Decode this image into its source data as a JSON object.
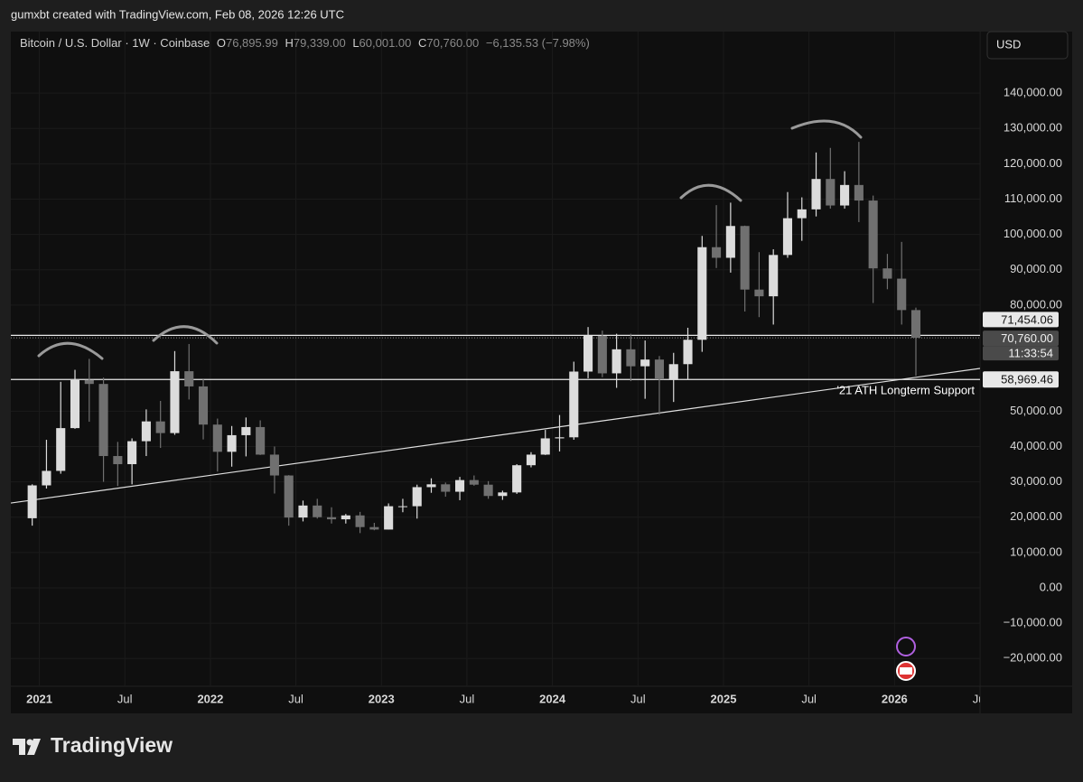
{
  "header": {
    "text": "gumxbt created with TradingView.com, Feb 08, 2026 12:26 UTC"
  },
  "legend": {
    "symbol": "Bitcoin / U.S. Dollar · 1W · Coinbase",
    "o_label": "O",
    "o_value": "76,895.99",
    "h_label": "H",
    "h_value": "79,339.00",
    "l_label": "L",
    "l_value": "60,001.00",
    "c_label": "C",
    "c_value": "70,760.00",
    "change": "−6,135.53 (−7.98%)"
  },
  "currency_button": "USD",
  "brand": "TradingView",
  "chart_data": {
    "type": "candlestick",
    "x": [
      "2020-12",
      "2021-01",
      "2021-02",
      "2021-03",
      "2021-04",
      "2021-05",
      "2021-06",
      "2021-07",
      "2021-08",
      "2021-09",
      "2021-10",
      "2021-11",
      "2021-12",
      "2022-01",
      "2022-02",
      "2022-03",
      "2022-04",
      "2022-05",
      "2022-06",
      "2022-07",
      "2022-08",
      "2022-09",
      "2022-10",
      "2022-11",
      "2022-12",
      "2023-01",
      "2023-02",
      "2023-03",
      "2023-04",
      "2023-05",
      "2023-06",
      "2023-07",
      "2023-08",
      "2023-09",
      "2023-10",
      "2023-11",
      "2023-12",
      "2024-01",
      "2024-02",
      "2024-03",
      "2024-04",
      "2024-05",
      "2024-06",
      "2024-07",
      "2024-08",
      "2024-09",
      "2024-10",
      "2024-11",
      "2024-12",
      "2025-01",
      "2025-02",
      "2025-03",
      "2025-04",
      "2025-05",
      "2025-06",
      "2025-07",
      "2025-08",
      "2025-09",
      "2025-10",
      "2025-11",
      "2025-12",
      "2026-01",
      "2026-02"
    ],
    "open": [
      19700,
      29000,
      33100,
      45200,
      58800,
      57700,
      37300,
      35000,
      41500,
      47100,
      43800,
      61300,
      57000,
      46200,
      38500,
      43200,
      45500,
      37700,
      31800,
      19900,
      23300,
      20000,
      19400,
      20500,
      17200,
      16500,
      23100,
      23100,
      28500,
      29300,
      27200,
      30500,
      29200,
      26000,
      27000,
      34700,
      37700,
      42300,
      42600,
      61200,
      71300,
      60700,
      67500,
      62700,
      64600,
      59000,
      63300,
      70200,
      96400,
      93400,
      102400,
      84400,
      82500,
      94200,
      104600,
      107100,
      115700,
      108200,
      114000,
      109600,
      90400,
      87500,
      78600
    ],
    "high": [
      29300,
      41900,
      58300,
      61700,
      64800,
      59500,
      41300,
      42300,
      50500,
      52900,
      67000,
      69000,
      59000,
      47900,
      45800,
      48200,
      47400,
      40000,
      31900,
      24700,
      25200,
      22800,
      20900,
      21500,
      18400,
      23900,
      25200,
      29200,
      31000,
      29800,
      31400,
      31800,
      30200,
      27500,
      35000,
      38400,
      44700,
      48900,
      64000,
      73800,
      72800,
      71900,
      71900,
      70000,
      65600,
      66500,
      73600,
      99600,
      108300,
      109000,
      102500,
      95000,
      95800,
      112000,
      110500,
      123200,
      124500,
      117900,
      126200,
      111000,
      94500,
      97900,
      79300
    ],
    "low": [
      17600,
      28100,
      32300,
      45000,
      47000,
      30000,
      28800,
      29300,
      37300,
      39600,
      43300,
      53300,
      42000,
      32900,
      34300,
      37200,
      37600,
      26700,
      17600,
      18800,
      19600,
      18200,
      18200,
      15500,
      16300,
      16500,
      21400,
      19600,
      26900,
      25800,
      24800,
      28900,
      25200,
      24900,
      26600,
      34100,
      37600,
      38600,
      41900,
      59300,
      59600,
      56600,
      58500,
      53500,
      49000,
      52600,
      58900,
      66800,
      90500,
      89200,
      78200,
      76600,
      74500,
      93400,
      98200,
      105100,
      107300,
      107300,
      103500,
      80600,
      84500,
      74500,
      60000
    ],
    "close": [
      29000,
      33100,
      45200,
      58800,
      57700,
      37300,
      35000,
      41500,
      47100,
      43800,
      61300,
      57000,
      46200,
      38500,
      43200,
      45500,
      37700,
      31800,
      19900,
      23300,
      20000,
      19400,
      20500,
      17200,
      16500,
      23100,
      23100,
      28500,
      29300,
      27200,
      30500,
      29200,
      26000,
      27000,
      34700,
      37700,
      42300,
      42600,
      61200,
      71300,
      60700,
      67500,
      62700,
      64600,
      59000,
      63300,
      70200,
      96400,
      93400,
      102400,
      84400,
      82500,
      94200,
      104600,
      107100,
      115700,
      108200,
      114000,
      109600,
      90400,
      87500,
      78600,
      70760
    ],
    "up_color": "#dcdcdc",
    "down_color": "#707070",
    "xlim": [
      "2020-11",
      "2026-07"
    ],
    "xticks": [
      {
        "value": "2021-01",
        "label": "2021"
      },
      {
        "value": "2021-07",
        "label": "Jul"
      },
      {
        "value": "2022-01",
        "label": "2022"
      },
      {
        "value": "2022-07",
        "label": "Jul"
      },
      {
        "value": "2023-01",
        "label": "2023"
      },
      {
        "value": "2023-07",
        "label": "Jul"
      },
      {
        "value": "2024-01",
        "label": "2024"
      },
      {
        "value": "2024-07",
        "label": "Jul"
      },
      {
        "value": "2025-01",
        "label": "2025"
      },
      {
        "value": "2025-07",
        "label": "Jul"
      },
      {
        "value": "2026-01",
        "label": "2026"
      },
      {
        "value": "2026-07",
        "label": "Jul"
      }
    ],
    "ylim": [
      -27850,
      157400
    ],
    "yticks": [
      {
        "value": 140000,
        "label": "140,000.00"
      },
      {
        "value": 130000,
        "label": "130,000.00"
      },
      {
        "value": 120000,
        "label": "120,000.00"
      },
      {
        "value": 110000,
        "label": "110,000.00"
      },
      {
        "value": 100000,
        "label": "100,000.00"
      },
      {
        "value": 90000,
        "label": "90,000.00"
      },
      {
        "value": 80000,
        "label": "80,000.00"
      },
      {
        "value": 50000,
        "label": "50,000.00"
      },
      {
        "value": 40000,
        "label": "40,000.00"
      },
      {
        "value": 30000,
        "label": "30,000.00"
      },
      {
        "value": 20000,
        "label": "20,000.00"
      },
      {
        "value": 10000,
        "label": "10,000.00"
      },
      {
        "value": 0,
        "label": "0.00"
      },
      {
        "value": -10000,
        "label": "−10,000.00"
      },
      {
        "value": -20000,
        "label": "−20,000.00"
      }
    ],
    "grid": true,
    "price_lines": [
      {
        "value": 71454.06,
        "label": "71,454.06"
      },
      {
        "value": 58969.46,
        "label": "58,969.46"
      }
    ],
    "current_price": {
      "value": 70760,
      "label": "70,760.00",
      "countdown": "11:33:54"
    },
    "trendline": {
      "label": "'21 ATH Longterm Support",
      "x": [
        "2020-11",
        "2026-07"
      ],
      "values": [
        24000,
        62100
      ]
    }
  }
}
